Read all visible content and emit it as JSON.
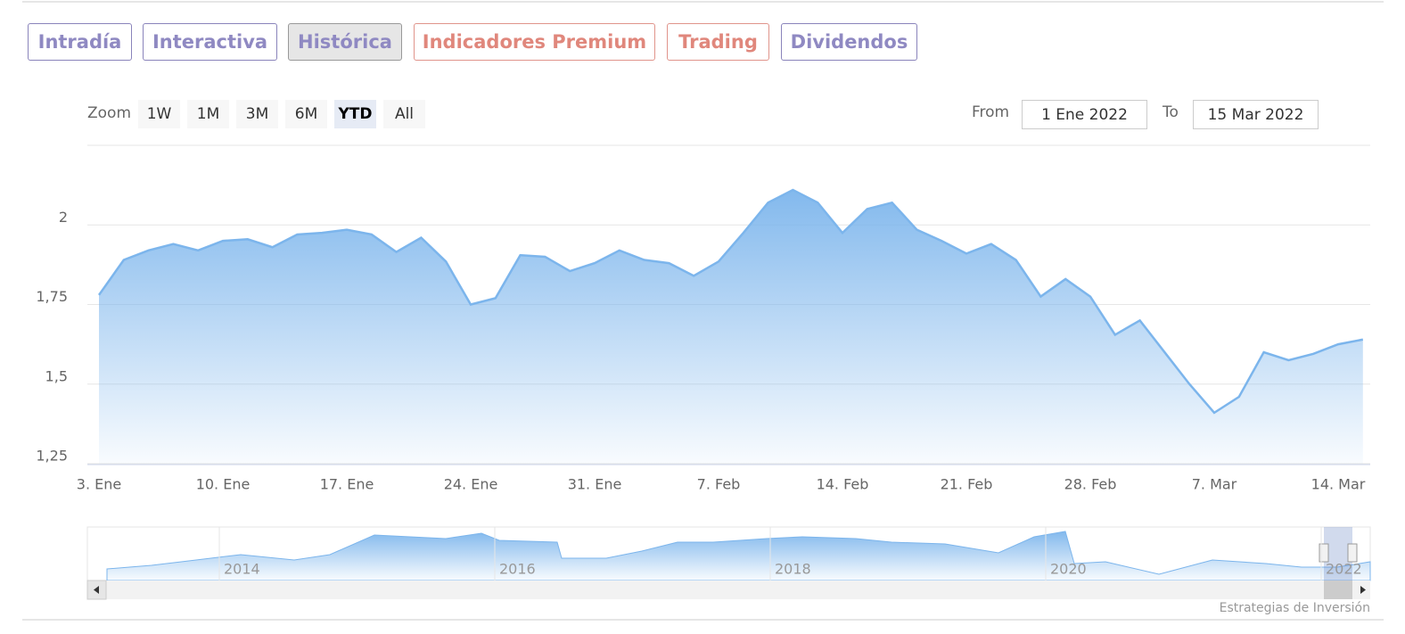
{
  "tabs": [
    "Intradía",
    "Interactiva",
    "Histórica",
    "Indicadores Premium",
    "Trading",
    "Dividendos"
  ],
  "zoom": {
    "label": "Zoom",
    "buttons": [
      "1W",
      "1M",
      "3M",
      "6M",
      "YTD",
      "All"
    ]
  },
  "range": {
    "from_label": "From",
    "from": "1 Ene 2022",
    "to_label": "To",
    "to": "15 Mar 2022"
  },
  "chart_data": {
    "type": "area",
    "categories": [
      "3. Ene",
      null,
      null,
      null,
      null,
      "10. Ene",
      null,
      null,
      null,
      null,
      "17. Ene",
      null,
      null,
      null,
      null,
      "24. Ene",
      null,
      null,
      null,
      null,
      "31. Ene",
      null,
      null,
      null,
      null,
      "7. Feb",
      null,
      null,
      null,
      null,
      "14. Feb",
      null,
      null,
      null,
      null,
      "21. Feb",
      null,
      null,
      null,
      null,
      "28. Feb",
      null,
      null,
      null,
      null,
      "7. Mar",
      null,
      null,
      null,
      null,
      "14. Mar",
      null
    ],
    "values": [
      1.78,
      1.89,
      1.92,
      1.94,
      1.92,
      1.95,
      1.955,
      1.93,
      1.97,
      1.975,
      1.985,
      1.97,
      1.915,
      1.96,
      1.885,
      1.75,
      1.77,
      1.905,
      1.9,
      1.855,
      1.88,
      1.92,
      1.89,
      1.88,
      1.84,
      1.885,
      1.975,
      2.07,
      2.11,
      2.07,
      1.975,
      2.05,
      2.07,
      1.985,
      1.95,
      1.91,
      1.94,
      1.89,
      1.775,
      1.83,
      1.775,
      1.655,
      1.7,
      1.6,
      1.5,
      1.41,
      1.46,
      1.6,
      1.575,
      1.595,
      1.625,
      1.64
    ],
    "color": "#7cb5ec",
    "ylim": [
      1.25,
      2.25
    ],
    "yticks": [
      {
        "value": 1.25,
        "label": "1,25"
      },
      {
        "value": 1.5,
        "label": "1,5"
      },
      {
        "value": 1.75,
        "label": "1,75"
      },
      2
    ],
    "grid": true
  },
  "navigator": {
    "labels": [
      "2014",
      "2016",
      "2018",
      "2020",
      "2022"
    ]
  },
  "credit": "Estrategias de Inversión"
}
